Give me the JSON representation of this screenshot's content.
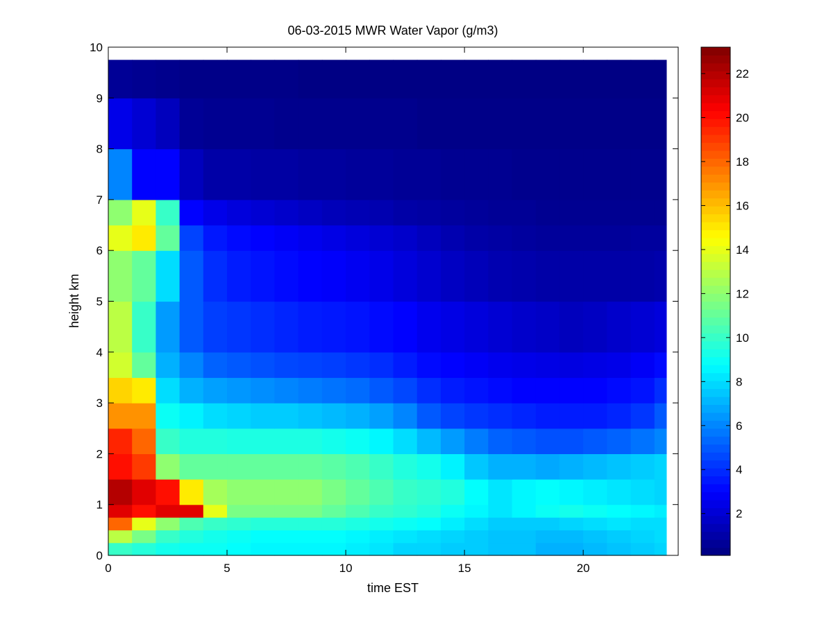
{
  "chart_data": {
    "type": "heatmap",
    "title": "06-03-2015 MWR Water Vapor (g/m3)",
    "xlabel": "time EST",
    "ylabel": "height km",
    "xlim": [
      0,
      24
    ],
    "ylim": [
      0,
      10
    ],
    "x_ticks": [
      "0",
      "5",
      "10",
      "15",
      "20"
    ],
    "y_ticks": [
      "0",
      "1",
      "2",
      "3",
      "4",
      "5",
      "6",
      "7",
      "8",
      "9",
      "10"
    ],
    "colorbar": {
      "range": [
        0.1,
        23.2
      ],
      "ticks": [
        "2",
        "4",
        "6",
        "8",
        "10",
        "12",
        "14",
        "16",
        "18",
        "20",
        "22"
      ],
      "colormap": "jet"
    },
    "data_extent": {
      "time_max": 23.5,
      "height_max": 9.75
    },
    "time_centers": [
      0.5,
      1.5,
      2.5,
      3.5,
      4.5,
      5.5,
      6.5,
      7.5,
      8.5,
      9.5,
      10.5,
      11.5,
      12.5,
      13.5,
      14.5,
      15.5,
      16.5,
      17.5,
      18.5,
      19.5,
      20.5,
      21.5,
      22.5,
      23.5
    ],
    "height_levels": [
      0,
      0.25,
      0.5,
      0.75,
      1,
      1.5,
      2,
      2.5,
      3,
      3.5,
      4,
      5,
      6,
      6.5,
      7,
      8,
      9,
      9.75
    ],
    "values": [
      [
        10,
        9.6,
        9.2,
        9,
        9,
        8.8,
        8.6,
        8.6,
        8.6,
        8.6,
        8.4,
        8.2,
        7.8,
        7.8,
        7.6,
        7.6,
        7.4,
        7.4,
        7,
        7,
        7.2,
        7.4,
        7.6,
        7.8
      ],
      [
        13,
        11.5,
        10,
        9.5,
        9.2,
        9,
        8.8,
        8.8,
        8.8,
        8.8,
        8.6,
        8.4,
        8.2,
        8,
        7.8,
        7.6,
        7.4,
        7.4,
        7.2,
        7.2,
        7.4,
        7.6,
        7.8,
        8
      ],
      [
        18,
        14,
        12,
        10.5,
        10,
        9.8,
        9.6,
        9.6,
        9.6,
        9.6,
        9.4,
        9.2,
        9,
        8.8,
        8.4,
        8,
        7.6,
        7.6,
        7.6,
        7.8,
        8,
        8.2,
        8,
        8
      ],
      [
        21,
        20,
        21,
        21,
        14,
        11.5,
        11.5,
        11.5,
        11.5,
        11,
        10.5,
        10,
        9.8,
        9.5,
        9,
        8.6,
        8.2,
        8.6,
        9,
        9.2,
        9,
        8.8,
        8.6,
        8.4
      ],
      [
        22,
        21,
        20,
        15,
        12.5,
        12,
        12,
        12,
        12,
        11.5,
        11,
        10.5,
        10,
        9.8,
        9.5,
        8.8,
        8.2,
        8.6,
        8.8,
        8.6,
        8.4,
        8.2,
        8,
        7.8
      ],
      [
        20,
        19,
        12,
        11,
        11,
        11,
        11,
        11,
        11,
        10.8,
        10.5,
        10,
        9.5,
        9.2,
        8.5,
        7.5,
        7,
        7,
        6.8,
        7,
        7.2,
        7.4,
        7.6,
        7.8
      ],
      [
        19.5,
        18,
        10,
        9.5,
        9.5,
        9.4,
        9.4,
        9.4,
        9.4,
        9.2,
        9,
        8.6,
        8,
        7.2,
        6.5,
        5.8,
        5.2,
        5,
        4.8,
        4.8,
        5,
        5.2,
        5.6,
        6
      ],
      [
        17,
        17,
        9,
        8.5,
        8,
        7.8,
        7.6,
        7.6,
        7.4,
        7.2,
        7,
        6.6,
        6,
        5,
        4.5,
        4.2,
        4,
        3.8,
        3.6,
        3.6,
        3.6,
        3.8,
        4.2,
        5
      ],
      [
        15.5,
        15,
        8,
        7,
        6.6,
        6.4,
        6.2,
        6,
        5.8,
        5.6,
        5.4,
        5,
        4.6,
        4,
        3.6,
        3.4,
        3.2,
        3,
        3,
        3,
        3,
        3.2,
        3.4,
        4
      ],
      [
        13.5,
        11,
        7,
        6,
        5.2,
        5,
        4.8,
        4.6,
        4.5,
        4.4,
        4.2,
        4,
        3.6,
        3.2,
        3,
        2.8,
        2.6,
        2.5,
        2.4,
        2.3,
        2.4,
        2.5,
        2.8,
        3.2
      ],
      [
        13,
        10,
        6.5,
        5,
        4.4,
        4.2,
        4,
        3.8,
        3.6,
        3.5,
        3.4,
        3.2,
        3,
        2.6,
        2.4,
        2.2,
        2,
        1.8,
        1.7,
        1.5,
        1.6,
        1.8,
        2,
        2.2
      ],
      [
        12,
        11,
        8,
        5,
        4,
        3.6,
        3.4,
        3.2,
        3,
        2.9,
        2.7,
        2.5,
        2.2,
        1.9,
        1.6,
        1.4,
        1.2,
        1.1,
        1,
        1,
        1,
        1,
        1,
        1.1
      ],
      [
        14,
        15,
        11,
        4.5,
        3.5,
        3.2,
        3,
        2.8,
        2.6,
        2.4,
        2.2,
        2,
        1.8,
        1.5,
        1.2,
        1,
        0.9,
        0.8,
        0.7,
        0.7,
        0.7,
        0.7,
        0.8,
        0.8
      ],
      [
        12,
        14,
        10,
        3,
        2.5,
        2.2,
        2,
        1.8,
        1.6,
        1.4,
        1.3,
        1.2,
        1,
        0.9,
        0.8,
        0.7,
        0.6,
        0.6,
        0.5,
        0.5,
        0.5,
        0.5,
        0.5,
        0.5
      ],
      [
        6,
        3,
        3,
        1.5,
        1,
        1,
        0.9,
        0.9,
        0.8,
        0.8,
        0.7,
        0.7,
        0.6,
        0.6,
        0.5,
        0.5,
        0.5,
        0.4,
        0.4,
        0.4,
        0.4,
        0.4,
        0.4,
        0.4
      ],
      [
        2.5,
        2,
        1.5,
        0.6,
        0.5,
        0.5,
        0.5,
        0.4,
        0.4,
        0.4,
        0.4,
        0.4,
        0.4,
        0.3,
        0.3,
        0.3,
        0.3,
        0.3,
        0.3,
        0.3,
        0.3,
        0.3,
        0.3,
        0.3
      ],
      [
        0.6,
        0.5,
        0.4,
        0.3,
        0.3,
        0.3,
        0.3,
        0.3,
        0.2,
        0.2,
        0.2,
        0.2,
        0.2,
        0.2,
        0.2,
        0.2,
        0.2,
        0.2,
        0.2,
        0.2,
        0.2,
        0.2,
        0.2,
        0.2
      ]
    ]
  }
}
